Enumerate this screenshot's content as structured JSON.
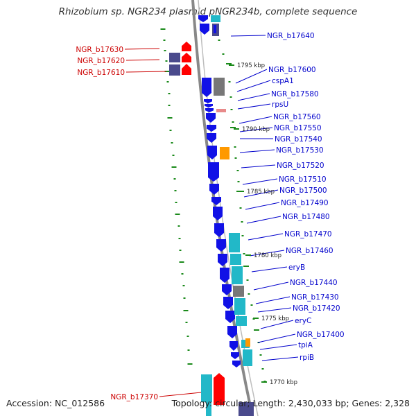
{
  "title": "Rhizobium sp. NGR234 plasmid pNGR234b, complete sequence",
  "footer": {
    "accession": "Accession: NC_012586",
    "stats": "Topology: circular; Length: 2,430,033 bp; Genes: 2,328"
  },
  "colors": {
    "forward_gene": "#1111e6",
    "reverse_gene": "#ff0000",
    "cds_teal": "#22b8c8",
    "cds_gray": "#777777",
    "cds_orange": "#ff9900",
    "cds_pink": "#e88a8a",
    "cds_navy": "#4a4a8c",
    "tick": "#1a8a1a",
    "forward_label": "#0000cc",
    "reverse_label": "#cc0000",
    "backbone": "#888888"
  },
  "scale_ticks": [
    "1795 kbp",
    "1790 kbp",
    "1785 kbp",
    "1780 kbp",
    "1775 kbp",
    "1770 kbp"
  ],
  "forward_labels": [
    "NGR_b17640",
    "NGR_b17600",
    "cspA1",
    "NGR_b17580",
    "rpsU",
    "NGR_b17560",
    "NGR_b17550",
    "NGR_b17540",
    "NGR_b17530",
    "NGR_b17520",
    "NGR_b17510",
    "NGR_b17500",
    "NGR_b17490",
    "NGR_b17480",
    "NGR_b17470",
    "NGR_b17460",
    "eryB",
    "NGR_b17440",
    "NGR_b17430",
    "NGR_b17420",
    "eryC",
    "NGR_b17400",
    "tpiA",
    "rpiB"
  ],
  "reverse_labels": [
    "NGR_b17630",
    "NGR_b17620",
    "NGR_b17610",
    "NGR_b17370"
  ]
}
